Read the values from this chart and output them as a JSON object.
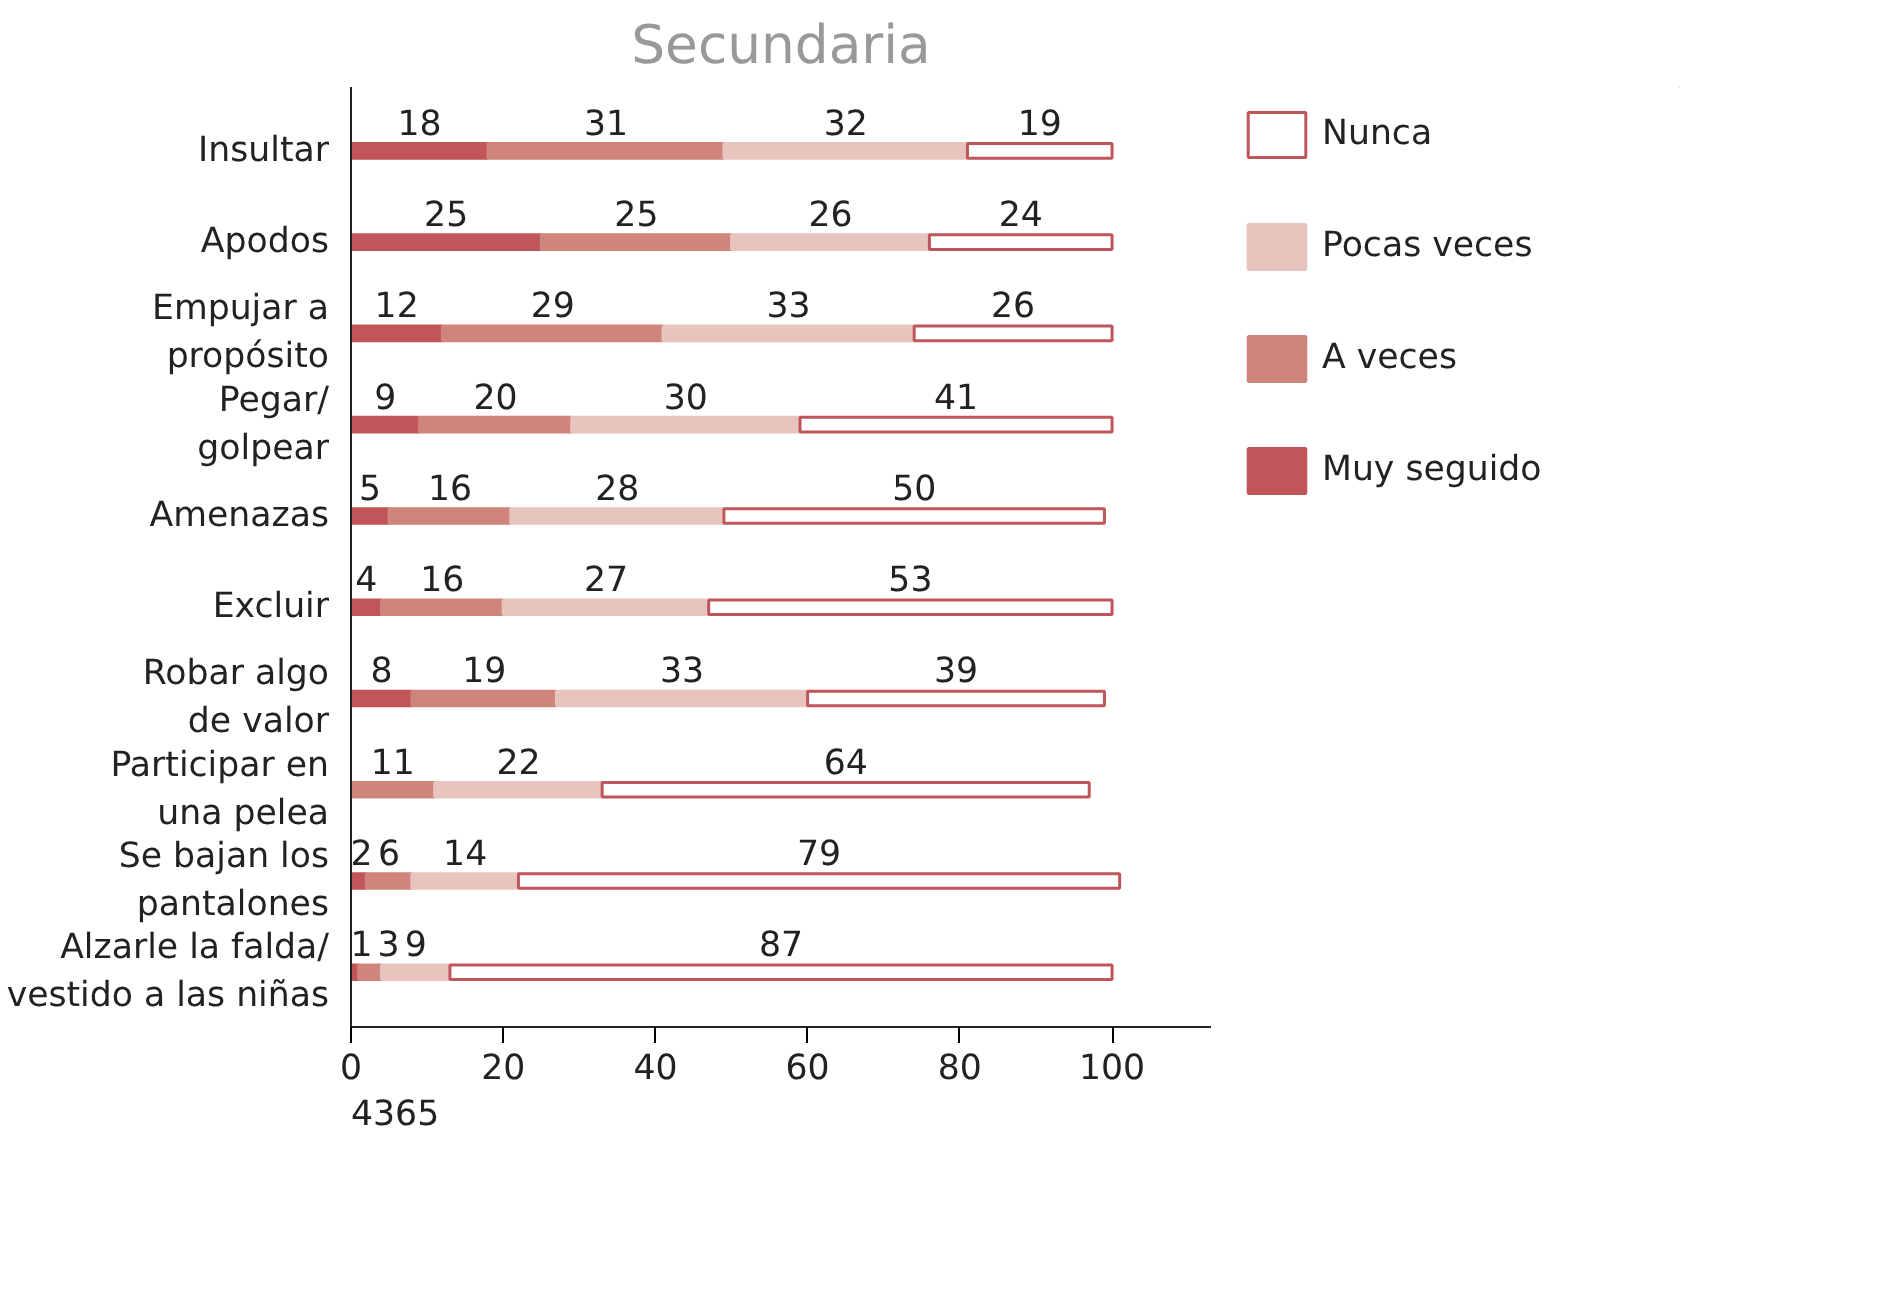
{
  "chart_data": {
    "type": "bar",
    "orientation": "horizontal",
    "stacked": true,
    "title": "Secundaria",
    "categories": [
      "Insultar",
      "Apodos",
      "Empujar a\npropósito",
      "Pegar/\ngolpear",
      "Amenazas",
      "Excluir",
      "Robar algo\nde valor",
      "Participar en\nuna pelea",
      "Se bajan los\npantalones",
      "Alzarle la falda/\nvestido a las niñas"
    ],
    "series": [
      {
        "name": "Muy seguido",
        "color": "#c0565a",
        "values": [
          18,
          25,
          12,
          9,
          5,
          4,
          8,
          null,
          2,
          1
        ]
      },
      {
        "name": "A veces",
        "color": "#cf847c",
        "values": [
          31,
          25,
          29,
          20,
          16,
          16,
          19,
          11,
          6,
          3
        ]
      },
      {
        "name": "Pocas veces",
        "color": "#e8c4bf",
        "values": [
          32,
          26,
          33,
          30,
          28,
          27,
          33,
          22,
          14,
          9
        ]
      },
      {
        "name": "Nunca",
        "color": "#c0555a",
        "values": [
          19,
          24,
          26,
          41,
          50,
          53,
          39,
          64,
          79,
          87
        ]
      }
    ],
    "xlim": [
      0,
      113
    ],
    "xticks": [
      0,
      20,
      40,
      60,
      80,
      100
    ],
    "data_labels": true,
    "legend": "right",
    "grid": false,
    "annotations": [
      "4365"
    ]
  }
}
